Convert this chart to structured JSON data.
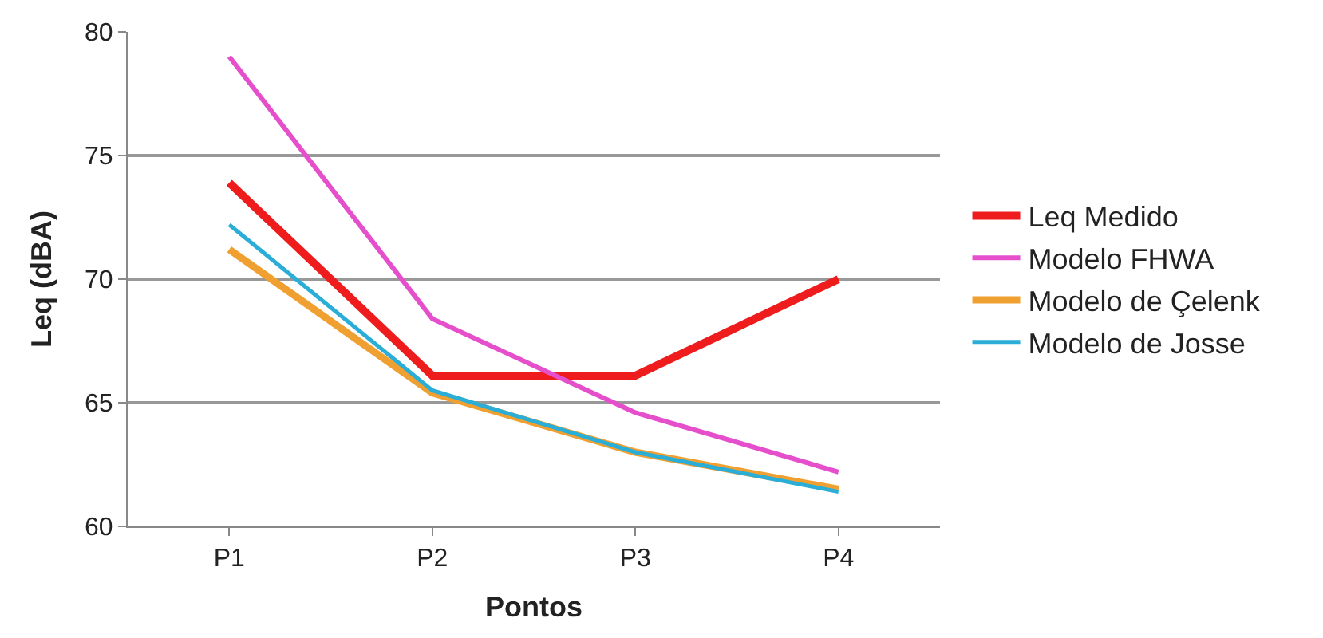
{
  "chart_data": {
    "type": "line",
    "xlabel": "Pontos",
    "ylabel": "Leq (dBA)",
    "categories": [
      "P1",
      "P2",
      "P3",
      "P4"
    ],
    "series": [
      {
        "name": "Leq Medido",
        "color": "#ee1c1c",
        "values": [
          73.9,
          66.1,
          66.1,
          70.0
        ]
      },
      {
        "name": "Modelo FHWA",
        "color": "#e54fcc",
        "values": [
          79.0,
          68.4,
          64.6,
          62.2
        ]
      },
      {
        "name": "Modelo de Çelenk",
        "color": "#f0a030",
        "values": [
          71.2,
          65.4,
          63.0,
          61.5
        ]
      },
      {
        "name": "Modelo de Josse",
        "color": "#2aaed8",
        "values": [
          72.2,
          65.5,
          63.0,
          61.4
        ]
      }
    ],
    "ylim": [
      60,
      80
    ],
    "yticks": [
      60,
      65,
      70,
      75,
      80
    ],
    "grid": "y",
    "legend": "right",
    "marker": "none",
    "line_style": "solid"
  }
}
